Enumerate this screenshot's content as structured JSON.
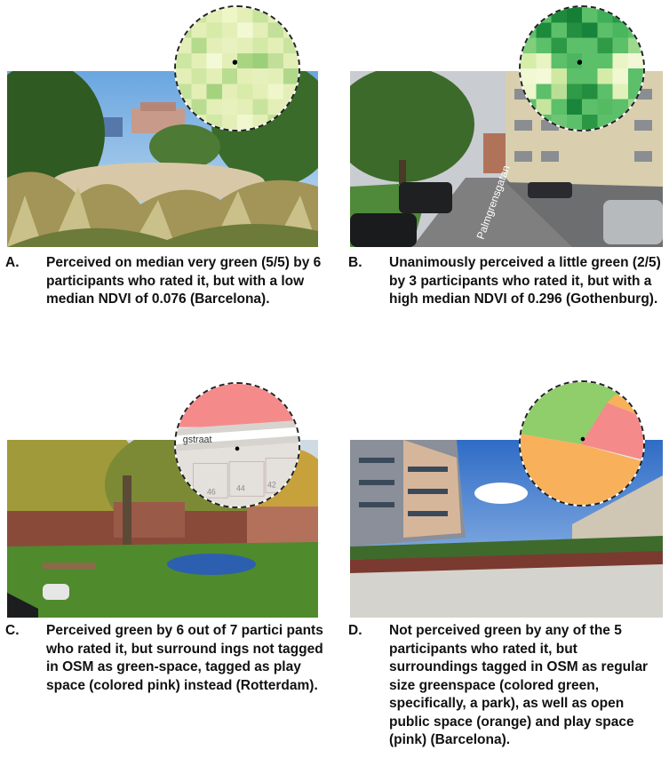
{
  "panels": [
    {
      "letter": "A.",
      "caption": "Perceived on median very green (5/5) by 6 participants who rated it, but with a low median NDVI of 0.076 (Barcelona)."
    },
    {
      "letter": "B.",
      "caption": "Unanimously perceived a little green (2/5) by 3 participants who rated it, but with a high median NDVI of 0.296 (Gothenburg).",
      "street_sign": "Palmgrensgatan"
    },
    {
      "letter": "C.",
      "caption": "Perceived green by 6 out of 7 partici pants who rated it, but surround ings not tagged in OSM as green-space, tagged as play space (colored pink) instead (Rotterdam).",
      "map_street": "gstraat",
      "map_numbers": [
        "46",
        "44",
        "42"
      ]
    },
    {
      "letter": "D.",
      "caption": "Not perceived green by any of the 5 participants who rated it, but surroundings tagged in OSM as regular size greenspace (colored green, specifically, a park), as well as open public space (orange) and play space (pink) (Barcelona)."
    }
  ],
  "colors": {
    "osm_green": "#8fce6a",
    "osm_orange": "#f8b05a",
    "osm_pink": "#f58a8a"
  }
}
